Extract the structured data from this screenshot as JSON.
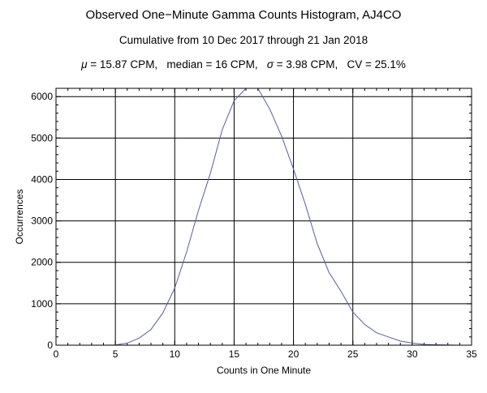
{
  "title": "Observed One−Minute Gamma Counts Histogram, AJ4CO",
  "subtitle": "Cumulative from 10 Dec 2017 through 21 Jan 2018",
  "stats": {
    "mu_symbol": "μ",
    "mu_text": " = 15.87 CPM,   median = 16 CPM,   ",
    "sigma_symbol": "σ",
    "sigma_text": " = 3.98 CPM,   CV = 25.1%"
  },
  "chart_data": {
    "type": "line",
    "title": "Observed One−Minute Gamma Counts Histogram, AJ4CO",
    "xlabel": "Counts in One Minute",
    "ylabel": "Occurrences",
    "xlim": [
      0,
      35
    ],
    "ylim": [
      0,
      6200
    ],
    "xticks_major": [
      0,
      5,
      10,
      15,
      20,
      25,
      30,
      35
    ],
    "yticks_major": [
      0,
      1000,
      2000,
      3000,
      4000,
      5000,
      6000
    ],
    "grid": true,
    "series": [
      {
        "color": "#5a5aa8",
        "x": [
          3,
          4,
          5,
          6,
          7,
          8,
          9,
          10,
          11,
          12,
          13,
          14,
          15,
          16,
          17,
          18,
          19,
          20,
          21,
          22,
          23,
          24,
          25,
          26,
          27,
          28,
          29,
          30,
          31,
          32,
          33,
          34
        ],
        "y": [
          0,
          0,
          5,
          50,
          170,
          380,
          780,
          1380,
          2250,
          3250,
          4150,
          5200,
          5900,
          6200,
          6200,
          5700,
          5050,
          4250,
          3400,
          2450,
          1750,
          1300,
          800,
          500,
          300,
          200,
          100,
          50,
          20,
          10,
          5,
          0
        ]
      }
    ]
  }
}
